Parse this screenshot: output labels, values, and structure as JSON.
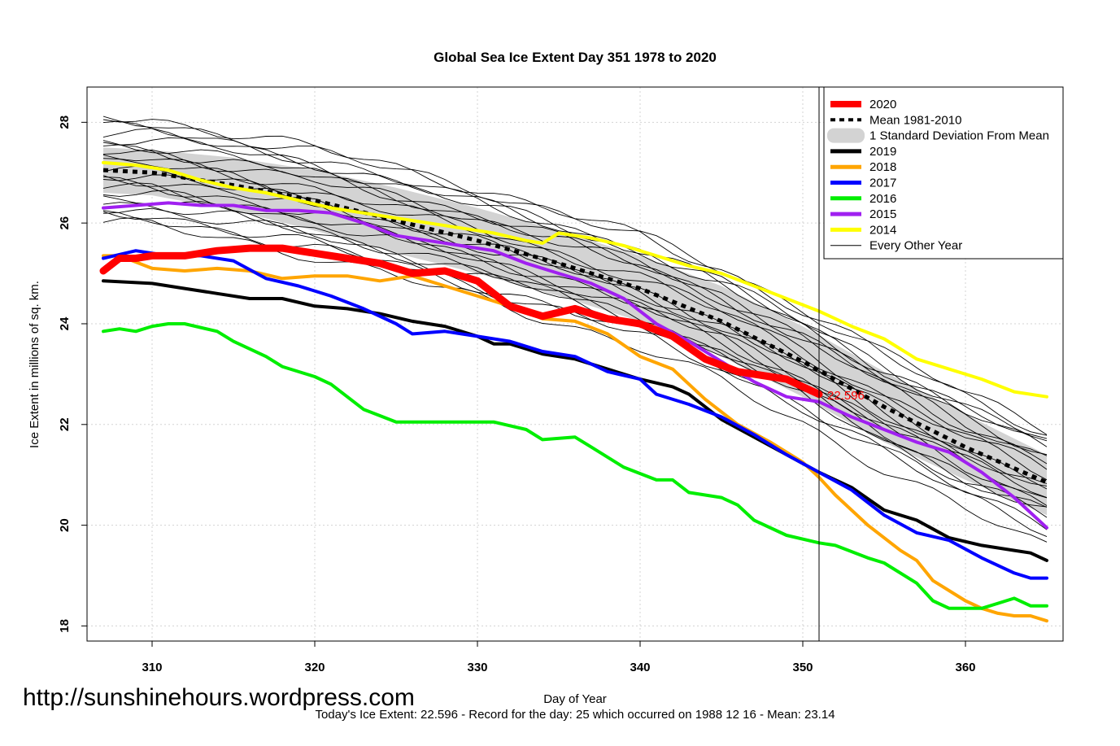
{
  "chart_data": {
    "type": "line",
    "title": "Global Sea Ice Extent Day 351 1978 to 2020",
    "xlabel": "Day of Year",
    "ylabel": "Ice Extent in millions of sq. km.",
    "xlim": [
      306,
      366
    ],
    "ylim": [
      17.7,
      28.7
    ],
    "xticks": [
      310,
      320,
      330,
      340,
      350,
      360
    ],
    "yticks": [
      18,
      20,
      22,
      24,
      26,
      28
    ],
    "grid": true,
    "legend_position": "top-right",
    "current_day": 351,
    "current_value_label": "22.596",
    "current_value": 22.596,
    "footer": "Today's Ice Extent: 22.596  - Record for the day: 25 which occurred on 1988 12 16  - Mean: 23.14",
    "watermark": "http://sunshinehours.wordpress.com",
    "legend": [
      {
        "label": "2020",
        "color": "#ff0000",
        "kind": "thick"
      },
      {
        "label": "Mean 1981-2010",
        "color": "#000000",
        "kind": "dotted"
      },
      {
        "label": "1 Standard Deviation From Mean",
        "color": "#d3d3d3",
        "kind": "band"
      },
      {
        "label": "2019",
        "color": "#000000",
        "kind": "line"
      },
      {
        "label": "2018",
        "color": "#ffa500",
        "kind": "line"
      },
      {
        "label": "2017",
        "color": "#0000ff",
        "kind": "line"
      },
      {
        "label": "2016",
        "color": "#00ee00",
        "kind": "line"
      },
      {
        "label": "2015",
        "color": "#a020f0",
        "kind": "line"
      },
      {
        "label": "2014",
        "color": "#ffff00",
        "kind": "line"
      },
      {
        "label": "Every Other Year",
        "color": "#000000",
        "kind": "thin"
      }
    ],
    "mean": {
      "x": [
        307,
        310,
        315,
        320,
        325,
        330,
        335,
        340,
        345,
        350,
        355,
        360,
        365
      ],
      "y": [
        27.05,
        27.0,
        26.75,
        26.45,
        26.05,
        25.65,
        25.2,
        24.7,
        24.05,
        23.25,
        22.35,
        21.55,
        20.85
      ]
    },
    "std_band": {
      "x": [
        307,
        310,
        315,
        320,
        325,
        330,
        335,
        340,
        345,
        350,
        355,
        360,
        365
      ],
      "upper": [
        27.5,
        27.45,
        27.3,
        27.05,
        26.7,
        26.3,
        25.85,
        25.35,
        24.75,
        23.95,
        23.05,
        22.2,
        21.4
      ],
      "lower": [
        26.6,
        26.55,
        26.25,
        25.85,
        25.4,
        25.0,
        24.55,
        24.05,
        23.35,
        22.55,
        21.65,
        20.9,
        20.2
      ]
    },
    "series": [
      {
        "name": "2020",
        "color": "#ff0000",
        "width": 9,
        "x": [
          307,
          308,
          309,
          310,
          312,
          314,
          316,
          318,
          320,
          322,
          324,
          326,
          328,
          330,
          332,
          334,
          336,
          338,
          340,
          342,
          344,
          346,
          348,
          349,
          350,
          351
        ],
        "y": [
          25.05,
          25.3,
          25.3,
          25.35,
          25.35,
          25.45,
          25.5,
          25.5,
          25.4,
          25.3,
          25.2,
          25.0,
          25.05,
          24.85,
          24.35,
          24.15,
          24.3,
          24.1,
          24.0,
          23.75,
          23.3,
          23.05,
          22.95,
          22.9,
          22.75,
          22.6
        ]
      },
      {
        "name": "2019",
        "color": "#000000",
        "width": 4,
        "x": [
          307,
          310,
          312,
          314,
          316,
          318,
          320,
          322,
          324,
          326,
          328,
          330,
          331,
          332,
          334,
          336,
          338,
          340,
          342,
          343,
          345,
          347,
          349,
          351,
          353,
          355,
          357,
          359,
          361,
          363,
          364,
          365
        ],
        "y": [
          24.85,
          24.8,
          24.7,
          24.6,
          24.5,
          24.5,
          24.35,
          24.3,
          24.2,
          24.05,
          23.95,
          23.75,
          23.6,
          23.6,
          23.4,
          23.3,
          23.1,
          22.9,
          22.75,
          22.6,
          22.1,
          21.75,
          21.4,
          21.05,
          20.75,
          20.3,
          20.1,
          19.75,
          19.6,
          19.5,
          19.45,
          19.3
        ]
      },
      {
        "name": "2018",
        "color": "#ffa500",
        "width": 4,
        "x": [
          307,
          308,
          310,
          312,
          314,
          316,
          318,
          320,
          322,
          324,
          326,
          328,
          330,
          332,
          334,
          336,
          338,
          340,
          342,
          344,
          346,
          348,
          350,
          351,
          352,
          354,
          356,
          357,
          358,
          360,
          361,
          362,
          363,
          364,
          365
        ],
        "y": [
          25.35,
          25.35,
          25.1,
          25.05,
          25.1,
          25.05,
          24.9,
          24.95,
          24.95,
          24.85,
          24.95,
          24.75,
          24.55,
          24.35,
          24.1,
          24.05,
          23.8,
          23.35,
          23.1,
          22.5,
          22.0,
          21.65,
          21.25,
          20.95,
          20.6,
          20.0,
          19.5,
          19.3,
          18.9,
          18.5,
          18.35,
          18.25,
          18.2,
          18.2,
          18.1
        ]
      },
      {
        "name": "2017",
        "color": "#0000ff",
        "width": 4,
        "x": [
          307,
          309,
          311,
          313,
          315,
          317,
          319,
          321,
          323,
          325,
          326,
          328,
          330,
          332,
          334,
          336,
          338,
          340,
          341,
          343,
          345,
          347,
          349,
          351,
          353,
          355,
          357,
          359,
          361,
          363,
          364,
          365
        ],
        "y": [
          25.3,
          25.45,
          25.35,
          25.35,
          25.25,
          24.9,
          24.75,
          24.55,
          24.3,
          24.0,
          23.8,
          23.85,
          23.75,
          23.65,
          23.45,
          23.35,
          23.05,
          22.9,
          22.6,
          22.4,
          22.15,
          21.8,
          21.4,
          21.05,
          20.7,
          20.2,
          19.85,
          19.7,
          19.35,
          19.05,
          18.95,
          18.95
        ]
      },
      {
        "name": "2016",
        "color": "#00ee00",
        "width": 4,
        "x": [
          307,
          308,
          309,
          310,
          311,
          312,
          314,
          315,
          317,
          318,
          320,
          321,
          323,
          325,
          327,
          329,
          331,
          333,
          334,
          336,
          337,
          339,
          341,
          342,
          343,
          345,
          346,
          347,
          349,
          351,
          352,
          354,
          355,
          357,
          358,
          359,
          361,
          362,
          363,
          364,
          365
        ],
        "y": [
          23.85,
          23.9,
          23.85,
          23.95,
          24.0,
          24.0,
          23.85,
          23.65,
          23.35,
          23.15,
          22.95,
          22.8,
          22.3,
          22.05,
          22.05,
          22.05,
          22.05,
          21.9,
          21.7,
          21.75,
          21.55,
          21.15,
          20.9,
          20.9,
          20.65,
          20.55,
          20.4,
          20.1,
          19.8,
          19.65,
          19.6,
          19.35,
          19.25,
          18.85,
          18.5,
          18.35,
          18.35,
          18.45,
          18.55,
          18.4,
          18.4
        ]
      },
      {
        "name": "2015",
        "color": "#a020f0",
        "width": 4,
        "x": [
          307,
          309,
          311,
          313,
          315,
          317,
          319,
          321,
          323,
          325,
          327,
          329,
          331,
          333,
          335,
          337,
          339,
          341,
          343,
          345,
          347,
          349,
          351,
          353,
          355,
          357,
          359,
          361,
          363,
          365
        ],
        "y": [
          26.3,
          26.35,
          26.4,
          26.35,
          26.35,
          26.25,
          26.25,
          26.2,
          26.0,
          25.75,
          25.65,
          25.55,
          25.45,
          25.2,
          25.0,
          24.8,
          24.5,
          24.0,
          23.65,
          23.25,
          22.85,
          22.55,
          22.45,
          22.15,
          21.9,
          21.65,
          21.45,
          21.05,
          20.55,
          19.95
        ]
      },
      {
        "name": "2014",
        "color": "#ffff00",
        "width": 4,
        "x": [
          307,
          309,
          311,
          313,
          315,
          317,
          319,
          321,
          323,
          325,
          327,
          329,
          331,
          333,
          334,
          335,
          337,
          339,
          341,
          343,
          345,
          347,
          349,
          351,
          353,
          355,
          357,
          359,
          361,
          363,
          365
        ],
        "y": [
          27.2,
          27.15,
          27.05,
          26.85,
          26.7,
          26.6,
          26.45,
          26.3,
          26.2,
          26.1,
          26.0,
          25.9,
          25.8,
          25.65,
          25.6,
          25.8,
          25.7,
          25.55,
          25.35,
          25.15,
          25.0,
          24.75,
          24.5,
          24.25,
          23.95,
          23.7,
          23.3,
          23.1,
          22.9,
          22.65,
          22.55
        ]
      }
    ]
  }
}
